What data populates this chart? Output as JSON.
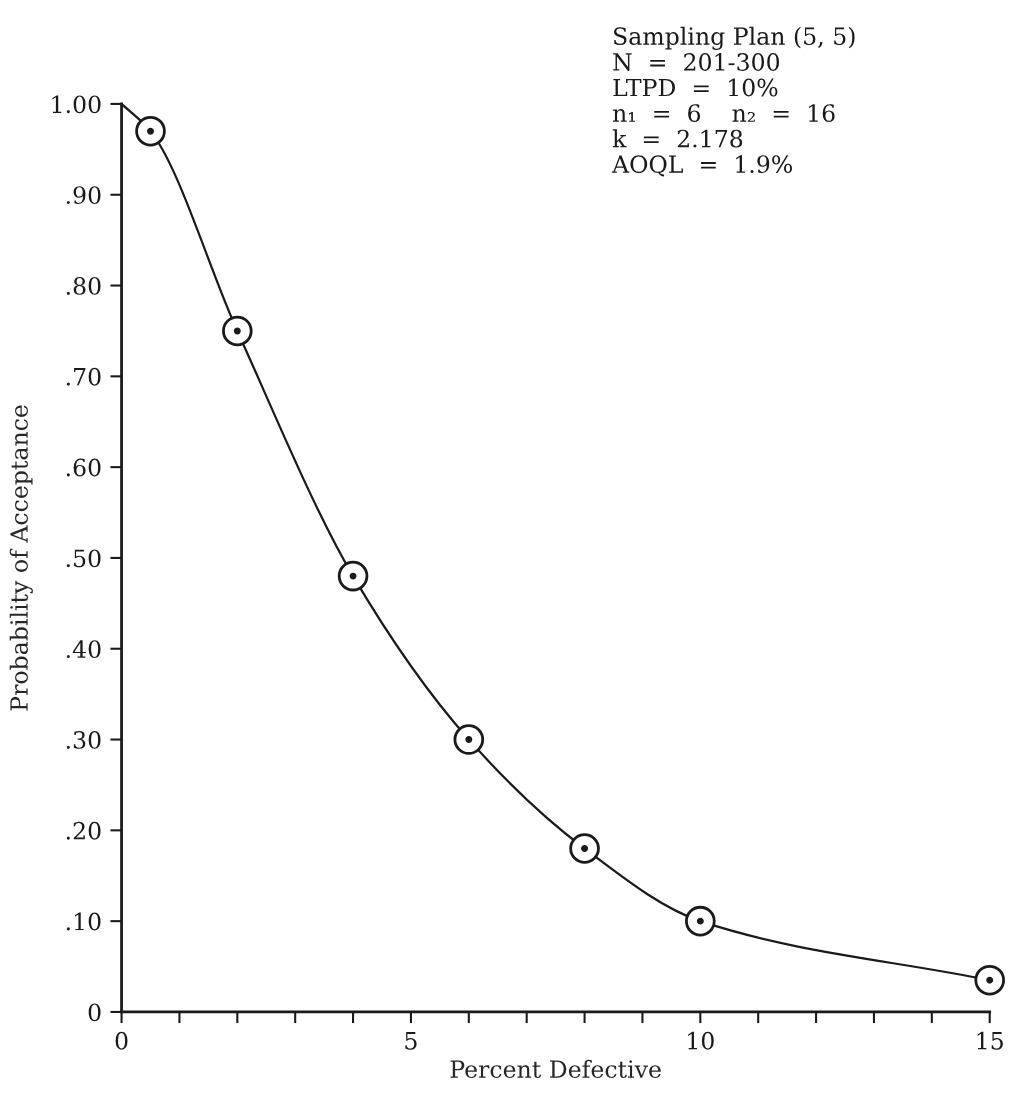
{
  "chart_data": {
    "type": "line",
    "xlabel": "Percent Defective",
    "ylabel": "Probability of Acceptance",
    "annotations": [
      "Sampling Plan (5, 5)",
      "N  =  201-300",
      "LTPD  =  10%",
      "n₁  =  6    n₂  =  16",
      "k  =  2.178",
      "AOQL  =  1.9%"
    ],
    "series": [
      {
        "type": "line",
        "color": "#1a1a1a",
        "marker": "none",
        "line_style": "solid",
        "x": [
          0,
          0.5,
          2,
          4,
          6,
          8,
          10,
          15
        ],
        "values": [
          1.0,
          0.97,
          0.75,
          0.48,
          0.3,
          0.18,
          0.1,
          0.035
        ]
      },
      {
        "type": "scatter",
        "color": "#1a1a1a",
        "marker": "circle",
        "x": [
          0.5,
          2,
          4,
          6,
          8,
          10,
          15
        ],
        "values": [
          0.97,
          0.75,
          0.48,
          0.3,
          0.18,
          0.1,
          0.035
        ]
      }
    ],
    "xlim": [
      0,
      15
    ],
    "ylim": [
      0,
      1.0
    ],
    "xticks": [
      0,
      {
        "value": 1,
        "label": null
      },
      {
        "value": 2,
        "label": null
      },
      {
        "value": 3,
        "label": null
      },
      {
        "value": 4,
        "label": null
      },
      5,
      {
        "value": 6,
        "label": null
      },
      {
        "value": 7,
        "label": null
      },
      {
        "value": 8,
        "label": null
      },
      {
        "value": 9,
        "label": null
      },
      10,
      {
        "value": 11,
        "label": null
      },
      {
        "value": 12,
        "label": null
      },
      {
        "value": 13,
        "label": null
      },
      {
        "value": 14,
        "label": null
      },
      15
    ],
    "yticks": [
      0,
      {
        "value": 0.1,
        "label": ".10"
      },
      {
        "value": 0.2,
        "label": ".20"
      },
      {
        "value": 0.3,
        "label": ".30"
      },
      {
        "value": 0.4,
        "label": ".40"
      },
      {
        "value": 0.5,
        "label": ".50"
      },
      {
        "value": 0.6,
        "label": ".60"
      },
      {
        "value": 0.7,
        "label": ".70"
      },
      {
        "value": 0.8,
        "label": ".80"
      },
      {
        "value": 0.9,
        "label": ".90"
      },
      {
        "value": 1.0,
        "label": "1.00"
      }
    ],
    "grid": false,
    "legend": false
  }
}
